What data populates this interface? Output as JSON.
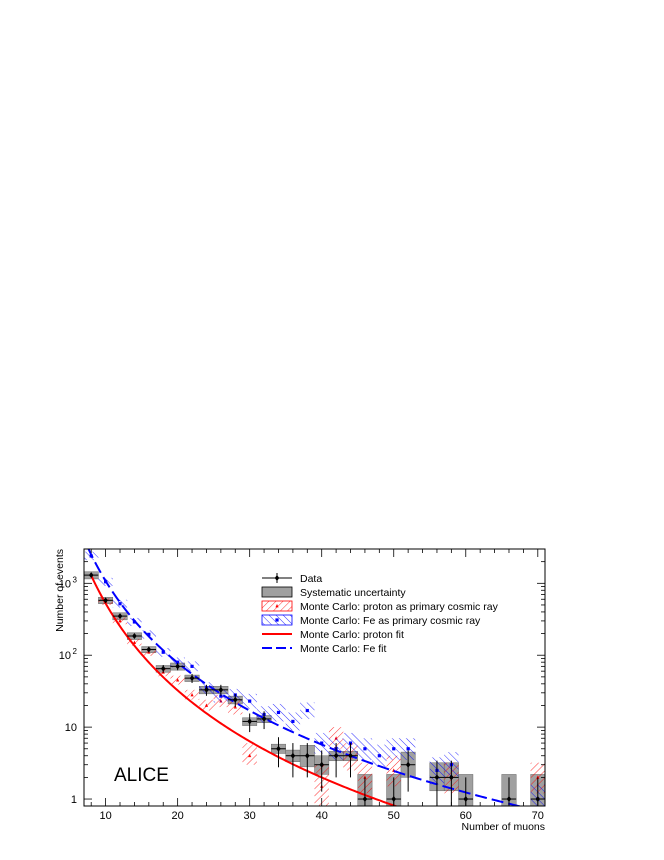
{
  "chart_data": {
    "type": "scatter",
    "title": "",
    "xlabel": "Number of muons",
    "ylabel": "Number of events",
    "xlim": [
      7,
      71
    ],
    "ylim": [
      0.8,
      3000
    ],
    "log_y": true,
    "grid": false,
    "legend_position": "top-center",
    "x_ticks": [
      10,
      20,
      30,
      40,
      50,
      60,
      70
    ],
    "y_ticks": [
      {
        "value": 1,
        "label": "1"
      },
      {
        "value": 10,
        "label": "10"
      },
      {
        "value": 100,
        "label": "10",
        "sup": "2"
      },
      {
        "value": 1000,
        "label": "10",
        "sup": "3"
      }
    ],
    "watermark": "ALICE",
    "colors": {
      "data": "#000000",
      "syst": "#a0a0a0",
      "proton": "#ff0000",
      "fe": "#0000ff"
    },
    "legend": [
      {
        "key": "data",
        "label": "Data"
      },
      {
        "key": "syst",
        "label": "Systematic uncertainty"
      },
      {
        "key": "mc_proton",
        "label": "Monte Carlo: proton as primary cosmic ray"
      },
      {
        "key": "mc_fe",
        "label": "Monte Carlo: Fe as primary cosmic ray"
      },
      {
        "key": "fit_proton",
        "label": "Monte Carlo: proton fit"
      },
      {
        "key": "fit_fe",
        "label": "Monte Carlo: Fe fit"
      }
    ],
    "series": [
      {
        "key": "data",
        "name": "Data",
        "points": [
          {
            "x": 8,
            "y": 1300,
            "syst": [
              1150,
              1450
            ]
          },
          {
            "x": 10,
            "y": 580,
            "syst": [
              520,
              640
            ]
          },
          {
            "x": 12,
            "y": 350,
            "syst": [
              310,
              390
            ]
          },
          {
            "x": 14,
            "y": 185,
            "syst": [
              165,
              205
            ]
          },
          {
            "x": 16,
            "y": 120,
            "syst": [
              108,
              132
            ]
          },
          {
            "x": 18,
            "y": 65,
            "syst": [
              58,
              72
            ]
          },
          {
            "x": 20,
            "y": 70,
            "syst": [
              62,
              78
            ]
          },
          {
            "x": 22,
            "y": 48,
            "syst": [
              43,
              53
            ]
          },
          {
            "x": 24,
            "y": 33,
            "syst": [
              29,
              37
            ]
          },
          {
            "x": 26,
            "y": 33,
            "syst": [
              29,
              37
            ]
          },
          {
            "x": 28,
            "y": 24,
            "syst": [
              21,
              27
            ]
          },
          {
            "x": 30,
            "y": 12,
            "syst": [
              10.5,
              13.5
            ]
          },
          {
            "x": 32,
            "y": 13,
            "syst": [
              11.5,
              14.5
            ]
          },
          {
            "x": 34,
            "y": 5,
            "syst": [
              4.3,
              5.8
            ]
          },
          {
            "x": 36,
            "y": 4,
            "syst": [
              3.3,
              4.8
            ]
          },
          {
            "x": 38,
            "y": 4,
            "syst": [
              2.8,
              5.6
            ]
          },
          {
            "x": 40,
            "y": 3,
            "syst": [
              2.2,
              4.0
            ]
          },
          {
            "x": 42,
            "y": 4,
            "syst": [
              3.4,
              4.6
            ]
          },
          {
            "x": 44,
            "y": 4,
            "syst": [
              3.4,
              4.6
            ]
          },
          {
            "x": 46,
            "y": 1,
            "syst": [
              0.8,
              2.2
            ]
          },
          {
            "x": 50,
            "y": 1,
            "syst": [
              0.8,
              2.2
            ]
          },
          {
            "x": 52,
            "y": 3,
            "syst": [
              2.0,
              4.5
            ]
          },
          {
            "x": 56,
            "y": 2,
            "syst": [
              1.3,
              3.2
            ]
          },
          {
            "x": 58,
            "y": 2,
            "syst": [
              1.3,
              3.2
            ]
          },
          {
            "x": 60,
            "y": 1,
            "syst": [
              0.8,
              2.2
            ]
          },
          {
            "x": 66,
            "y": 1,
            "syst": [
              0.8,
              2.2
            ]
          },
          {
            "x": 70,
            "y": 1,
            "syst": [
              0.8,
              2.2
            ]
          }
        ]
      },
      {
        "key": "mc_proton",
        "name": "Monte Carlo: proton as primary cosmic ray",
        "points": [
          {
            "x": 10,
            "y": 560,
            "band": [
              500,
              620
            ]
          },
          {
            "x": 12,
            "y": 300,
            "band": [
              270,
              335
            ]
          },
          {
            "x": 14,
            "y": 150,
            "band": [
              135,
              168
            ]
          },
          {
            "x": 16,
            "y": 110,
            "band": [
              98,
              122
            ]
          },
          {
            "x": 18,
            "y": 58,
            "band": [
              51,
              66
            ]
          },
          {
            "x": 20,
            "y": 45,
            "band": [
              39,
              52
            ]
          },
          {
            "x": 22,
            "y": 28,
            "band": [
              24,
              33
            ]
          },
          {
            "x": 24,
            "y": 20,
            "band": [
              17,
              24
            ]
          },
          {
            "x": 26,
            "y": 23,
            "band": [
              19,
              28
            ]
          },
          {
            "x": 28,
            "y": 19,
            "band": [
              15,
              24
            ]
          },
          {
            "x": 30,
            "y": 4,
            "band": [
              3,
              6
            ]
          },
          {
            "x": 40,
            "y": 1.5,
            "band": [
              0.8,
              3
            ]
          },
          {
            "x": 42,
            "y": 7,
            "band": [
              5,
              10
            ]
          },
          {
            "x": 44,
            "y": 4,
            "band": [
              2.5,
              6
            ]
          },
          {
            "x": 46,
            "y": 2,
            "band": [
              1.2,
              3.2
            ]
          },
          {
            "x": 50,
            "y": 2.5,
            "band": [
              1.5,
              4
            ]
          },
          {
            "x": 58,
            "y": 2,
            "band": [
              1.2,
              3.2
            ]
          },
          {
            "x": 70,
            "y": 2,
            "band": [
              1.2,
              3.2
            ]
          }
        ]
      },
      {
        "key": "mc_fe",
        "name": "Monte Carlo: Fe as primary cosmic ray",
        "points": [
          {
            "x": 8,
            "y": 2400,
            "band": [
              2100,
              2750
            ]
          },
          {
            "x": 10,
            "y": 1050,
            "band": [
              920,
              1190
            ]
          },
          {
            "x": 12,
            "y": 520,
            "band": [
              460,
              590
            ]
          },
          {
            "x": 14,
            "y": 290,
            "band": [
              255,
              330
            ]
          },
          {
            "x": 16,
            "y": 195,
            "band": [
              170,
              222
            ]
          },
          {
            "x": 18,
            "y": 110,
            "band": [
              95,
              126
            ]
          },
          {
            "x": 20,
            "y": 80,
            "band": [
              68,
              93
            ]
          },
          {
            "x": 22,
            "y": 70,
            "band": [
              60,
              82
            ]
          },
          {
            "x": 24,
            "y": 35,
            "band": [
              29,
              42
            ]
          },
          {
            "x": 26,
            "y": 27,
            "band": [
              22,
              33
            ]
          },
          {
            "x": 28,
            "y": 28,
            "band": [
              23,
              34
            ]
          },
          {
            "x": 30,
            "y": 23,
            "band": [
              18,
              29
            ]
          },
          {
            "x": 32,
            "y": 15,
            "band": [
              11.5,
              19.5
            ]
          },
          {
            "x": 34,
            "y": 16,
            "band": [
              12,
              21
            ]
          },
          {
            "x": 36,
            "y": 12,
            "band": [
              9,
              16
            ]
          },
          {
            "x": 38,
            "y": 17,
            "band": [
              13,
              22
            ]
          },
          {
            "x": 40,
            "y": 6,
            "band": [
              4.3,
              8.3
            ]
          },
          {
            "x": 42,
            "y": 5,
            "band": [
              3.5,
              7
            ]
          },
          {
            "x": 44,
            "y": 6,
            "band": [
              4.3,
              8.3
            ]
          },
          {
            "x": 46,
            "y": 5,
            "band": [
              3.5,
              7
            ]
          },
          {
            "x": 48,
            "y": 4,
            "band": [
              2.8,
              5.7
            ]
          },
          {
            "x": 50,
            "y": 5,
            "band": [
              3.5,
              7
            ]
          },
          {
            "x": 52,
            "y": 5,
            "band": [
              3.5,
              7
            ]
          },
          {
            "x": 56,
            "y": 2.5,
            "band": [
              1.6,
              3.8
            ]
          },
          {
            "x": 58,
            "y": 3,
            "band": [
              2,
              4.5
            ]
          },
          {
            "x": 70,
            "y": 1,
            "band": [
              0.8,
              1.6
            ]
          }
        ]
      },
      {
        "key": "fit_proton",
        "name": "Monte Carlo: proton fit",
        "function": "power",
        "A": 5500000,
        "k": 4.02,
        "x_range": [
          8,
          70
        ]
      },
      {
        "key": "fit_fe",
        "name": "Monte Carlo: Fe fit",
        "function": "power",
        "A": 6500000,
        "k": 3.78,
        "x_range": [
          7.5,
          71
        ]
      }
    ]
  }
}
